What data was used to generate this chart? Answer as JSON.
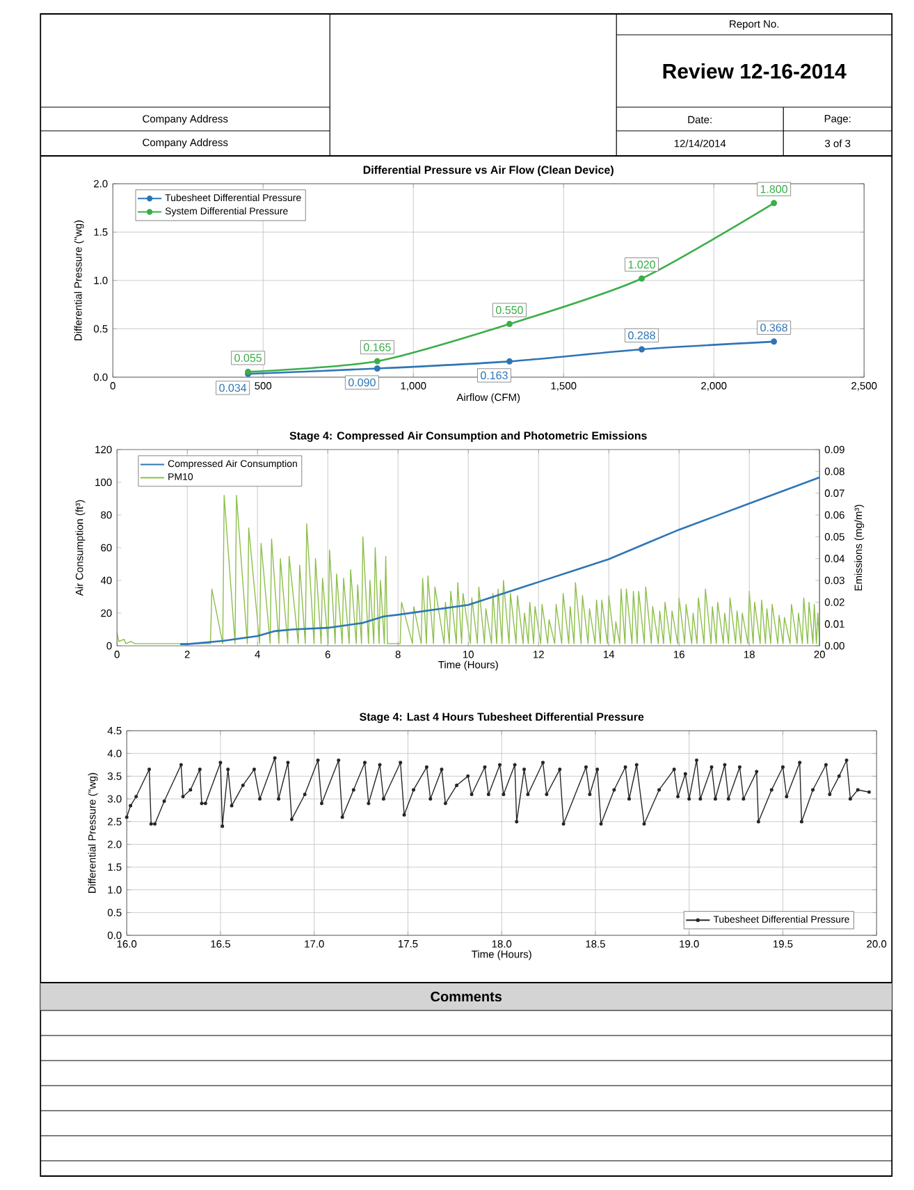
{
  "chart_data": [
    {
      "type": "line",
      "title": "Differential Pressure vs Air Flow (Clean Device)",
      "xlabel": "Airflow (CFM)",
      "ylabel": "Differential Pressure (\"wg)",
      "x": [
        450,
        880,
        1320,
        1760,
        2200
      ],
      "series": [
        {
          "name": "Tubesheet Differential Pressure",
          "color": "#2e75b6",
          "values": [
            0.034,
            0.09,
            0.163,
            0.288,
            0.368
          ],
          "value_labels": [
            "0.034",
            "0.090",
            "0.163",
            "0.288",
            "0.368"
          ]
        },
        {
          "name": "System Differential Pressure",
          "color": "#3cae49",
          "values": [
            0.055,
            0.165,
            0.55,
            1.02,
            1.8
          ],
          "value_labels": [
            "0.055",
            "0.165",
            "0.550",
            "1.020",
            "1.800"
          ]
        }
      ],
      "xlim": [
        0,
        2500
      ],
      "xticks": [
        0,
        500,
        {
          "value": 1000,
          "label": "1,000"
        },
        {
          "value": 1500,
          "label": "1,500"
        },
        {
          "value": 2000,
          "label": "2,000"
        },
        {
          "value": 2500,
          "label": "2,500"
        }
      ],
      "ylim": [
        0,
        2
      ],
      "yticks": [
        {
          "value": 0,
          "label": "0.0"
        },
        {
          "value": 0.5,
          "label": "0.5"
        },
        {
          "value": 1,
          "label": "1.0"
        },
        {
          "value": 1.5,
          "label": "1.5"
        },
        {
          "value": 2,
          "label": "2.0"
        }
      ],
      "grid": true,
      "legend": "top left",
      "marker": "circle",
      "annotations": [
        "Report No.",
        "Review 12-16-2014",
        "Company Address",
        "Company Address",
        "Date:",
        "12/14/2014",
        "Page:",
        "3 of 3"
      ]
    },
    {
      "type": "line",
      "title": "Stage 4: Compressed Air Consumption and Photometric Emissions",
      "xlabel": "Time (Hours)",
      "ylabel": "Air Consumption (ft³)",
      "y2label": "Emissions (mg/m³)",
      "series": [
        {
          "name": "Compressed Air Consumption",
          "color": "#2e75b6",
          "x": [
            1.8,
            2,
            3,
            4,
            4.5,
            5,
            6,
            7,
            7.6,
            8,
            9,
            10,
            11,
            12,
            13,
            14,
            15,
            16,
            17,
            18,
            19,
            20
          ],
          "values": [
            1,
            1,
            3,
            6,
            9,
            10,
            11,
            14,
            18,
            19,
            22,
            25,
            32,
            39,
            46,
            53,
            62,
            71,
            79,
            87,
            95,
            103
          ]
        },
        {
          "name": "PM10",
          "color": "#8dbf4a",
          "axis": "y2",
          "x": [
            0,
            0.05,
            0.2,
            0.25,
            0.4,
            0.5,
            2.66,
            2.7,
            3.01,
            3.05,
            3.36,
            3.4,
            3.71,
            3.75,
            4.06,
            4.1,
            4.36,
            4.4,
            4.61,
            4.65,
            4.86,
            4.9,
            5.16,
            5.2,
            5.36,
            5.4,
            5.61,
            5.65,
            5.81,
            5.85,
            6.01,
            6.05,
            6.21,
            6.25,
            6.41,
            6.45,
            6.61,
            6.65,
            6.81,
            6.85,
            6.96,
            7.0,
            7.16,
            7.2,
            7.31,
            7.35,
            7.46,
            7.5,
            7.61,
            7.65,
            7.7,
            8.06,
            8.1,
            8.41,
            8.45,
            8.66,
            8.7,
            8.81,
            8.85,
            9.01,
            9.05,
            9.31,
            9.35,
            9.46,
            9.5,
            9.66,
            9.7,
            9.81,
            9.85,
            10.06,
            10.1,
            10.26,
            10.3,
            10.46,
            10.5,
            10.66,
            10.7,
            10.81,
            10.85,
            10.96,
            11.0,
            11.16,
            11.2,
            11.36,
            11.4,
            11.56,
            11.6,
            11.71,
            11.75,
            11.86,
            11.9,
            12.06,
            12.1,
            12.26,
            12.3,
            12.46,
            12.5,
            12.66,
            12.7,
            12.86,
            12.9,
            13.01,
            13.05,
            13.21,
            13.25,
            13.41,
            13.45,
            13.61,
            13.65,
            13.76,
            13.8,
            13.96,
            14.0,
            14.16,
            14.2,
            14.31,
            14.35,
            14.46,
            14.5,
            14.66,
            14.7,
            14.81,
            14.85,
            15.01,
            15.05,
            15.21,
            15.25,
            15.41,
            15.45,
            15.56,
            15.6,
            15.76,
            15.8,
            15.96,
            16.0,
            16.16,
            16.2,
            16.36,
            16.4,
            16.51,
            16.55,
            16.71,
            16.75,
            16.91,
            16.95,
            17.06,
            17.1,
            17.26,
            17.3,
            17.41,
            17.45,
            17.61,
            17.65,
            17.76,
            17.8,
            17.96,
            18.0,
            18.11,
            18.15,
            18.31,
            18.35,
            18.46,
            18.5,
            18.61,
            18.65,
            18.81,
            18.85,
            18.96,
            19.0,
            19.16,
            19.2,
            19.36,
            19.4,
            19.51,
            19.55,
            19.66,
            19.7,
            19.81,
            19.85,
            19.91,
            19.95,
            20.0
          ],
          "values": [
            0.006,
            0.002,
            0.003,
            0.001,
            0.002,
            0.001,
            0.001,
            0.026,
            0.001,
            0.069,
            0.001,
            0.069,
            0.001,
            0.054,
            0.001,
            0.047,
            0.001,
            0.049,
            0.001,
            0.04,
            0.001,
            0.041,
            0.001,
            0.037,
            0.001,
            0.056,
            0.001,
            0.04,
            0.001,
            0.031,
            0.001,
            0.044,
            0.001,
            0.033,
            0.001,
            0.031,
            0.001,
            0.035,
            0.001,
            0.028,
            0.001,
            0.05,
            0.001,
            0.03,
            0.001,
            0.045,
            0.001,
            0.03,
            0.001,
            0.041,
            0.001,
            0.001,
            0.02,
            0.001,
            0.018,
            0.001,
            0.031,
            0.001,
            0.032,
            0.001,
            0.027,
            0.001,
            0.02,
            0.001,
            0.025,
            0.001,
            0.029,
            0.001,
            0.024,
            0.001,
            0.022,
            0.001,
            0.027,
            0.001,
            0.017,
            0.001,
            0.024,
            0.001,
            0.026,
            0.001,
            0.03,
            0.001,
            0.024,
            0.001,
            0.023,
            0.001,
            0.015,
            0.001,
            0.02,
            0.001,
            0.018,
            0.001,
            0.019,
            0.001,
            0.012,
            0.001,
            0.019,
            0.001,
            0.024,
            0.001,
            0.018,
            0.001,
            0.029,
            0.001,
            0.023,
            0.001,
            0.017,
            0.001,
            0.021,
            0.001,
            0.021,
            0.001,
            0.023,
            0.001,
            0.011,
            0.001,
            0.026,
            0.001,
            0.026,
            0.001,
            0.025,
            0.001,
            0.025,
            0.001,
            0.027,
            0.001,
            0.018,
            0.001,
            0.016,
            0.001,
            0.02,
            0.001,
            0.016,
            0.001,
            0.022,
            0.001,
            0.019,
            0.001,
            0.015,
            0.001,
            0.022,
            0.001,
            0.026,
            0.001,
            0.018,
            0.001,
            0.02,
            0.001,
            0.015,
            0.001,
            0.022,
            0.001,
            0.016,
            0.001,
            0.015,
            0.001,
            0.025,
            0.001,
            0.02,
            0.001,
            0.021,
            0.001,
            0.017,
            0.001,
            0.019,
            0.001,
            0.014,
            0.001,
            0.013,
            0.001,
            0.019,
            0.001,
            0.015,
            0.001,
            0.022,
            0.001,
            0.02,
            0.001,
            0.019,
            0.001,
            0.015,
            0.001
          ]
        }
      ],
      "xlim": [
        0,
        20
      ],
      "xticks": [
        0,
        2,
        4,
        6,
        8,
        10,
        12,
        14,
        16,
        18,
        20
      ],
      "ylim": [
        0,
        120
      ],
      "yticks": [
        0,
        20,
        40,
        60,
        80,
        100,
        120
      ],
      "y2lim": [
        0,
        0.09
      ],
      "y2ticks": [
        {
          "value": 0,
          "label": "0.00"
        },
        {
          "value": 0.01,
          "label": "0.01"
        },
        {
          "value": 0.02,
          "label": "0.02"
        },
        {
          "value": 0.03,
          "label": "0.03"
        },
        {
          "value": 0.04,
          "label": "0.04"
        },
        {
          "value": 0.05,
          "label": "0.05"
        },
        {
          "value": 0.06,
          "label": "0.06"
        },
        {
          "value": 0.07,
          "label": "0.07"
        },
        {
          "value": 0.08,
          "label": "0.08"
        },
        {
          "value": 0.09,
          "label": "0.09"
        }
      ],
      "grid": "x",
      "legend": "top left"
    },
    {
      "type": "line",
      "title": "Stage 4: Last 4 Hours Tubesheet Differential Pressure",
      "xlabel": "Time (Hours)",
      "ylabel": "Differential Pressure (\"wg)",
      "series": [
        {
          "name": "Tubesheet Differential Pressure",
          "color": "#262626",
          "x": [
            16.0,
            16.02,
            16.05,
            16.12,
            16.13,
            16.15,
            16.2,
            16.29,
            16.3,
            16.34,
            16.39,
            16.4,
            16.42,
            16.5,
            16.51,
            16.54,
            16.56,
            16.62,
            16.68,
            16.71,
            16.79,
            16.81,
            16.86,
            16.88,
            16.95,
            17.02,
            17.04,
            17.13,
            17.15,
            17.21,
            17.27,
            17.29,
            17.35,
            17.37,
            17.46,
            17.48,
            17.53,
            17.6,
            17.62,
            17.68,
            17.7,
            17.76,
            17.82,
            17.84,
            17.91,
            17.93,
            17.99,
            18.01,
            18.07,
            18.08,
            18.12,
            18.14,
            18.22,
            18.24,
            18.31,
            18.33,
            18.45,
            18.47,
            18.51,
            18.53,
            18.6,
            18.66,
            18.68,
            18.72,
            18.76,
            18.84,
            18.92,
            18.94,
            18.98,
            19.0,
            19.04,
            19.06,
            19.12,
            19.14,
            19.19,
            19.21,
            19.27,
            19.29,
            19.36,
            19.37,
            19.44,
            19.5,
            19.52,
            19.59,
            19.6,
            19.66,
            19.73,
            19.75,
            19.8,
            19.84,
            19.86,
            19.9,
            19.96
          ],
          "values": [
            2.6,
            2.85,
            3.05,
            3.65,
            2.45,
            2.45,
            2.95,
            3.75,
            3.05,
            3.2,
            3.65,
            2.9,
            2.9,
            3.8,
            2.4,
            3.65,
            2.85,
            3.3,
            3.65,
            3.0,
            3.9,
            3.0,
            3.8,
            2.55,
            3.1,
            3.85,
            2.9,
            3.85,
            2.6,
            3.2,
            3.8,
            2.9,
            3.75,
            3.0,
            3.8,
            2.65,
            3.2,
            3.7,
            3.0,
            3.65,
            2.9,
            3.3,
            3.5,
            3.1,
            3.7,
            3.1,
            3.75,
            3.1,
            3.75,
            2.5,
            3.65,
            3.1,
            3.8,
            3.1,
            3.65,
            2.45,
            3.7,
            3.1,
            3.65,
            2.45,
            3.2,
            3.7,
            3.0,
            3.75,
            2.45,
            3.2,
            3.65,
            3.05,
            3.55,
            3.0,
            3.85,
            3.0,
            3.7,
            3.0,
            3.75,
            3.0,
            3.7,
            3.0,
            3.6,
            2.5,
            3.2,
            3.7,
            3.05,
            3.8,
            2.5,
            3.2,
            3.75,
            3.1,
            3.5,
            3.85,
            3.0,
            3.2,
            3.15
          ]
        }
      ],
      "xlim": [
        16,
        20
      ],
      "xticks": [
        {
          "value": 16,
          "label": "16.0"
        },
        {
          "value": 16.5,
          "label": "16.5"
        },
        {
          "value": 17,
          "label": "17.0"
        },
        {
          "value": 17.5,
          "label": "17.5"
        },
        {
          "value": 18,
          "label": "18.0"
        },
        {
          "value": 18.5,
          "label": "18.5"
        },
        {
          "value": 19,
          "label": "19.0"
        },
        {
          "value": 19.5,
          "label": "19.5"
        },
        {
          "value": 20,
          "label": "20.0"
        }
      ],
      "ylim": [
        0,
        4.5
      ],
      "yticks": [
        {
          "value": 0,
          "label": "0.0"
        },
        {
          "value": 0.5,
          "label": "0.5"
        },
        {
          "value": 1,
          "label": "1.0"
        },
        {
          "value": 1.5,
          "label": "1.5"
        },
        {
          "value": 2,
          "label": "2.0"
        },
        {
          "value": 2.5,
          "label": "2.5"
        },
        {
          "value": 3,
          "label": "3.0"
        },
        {
          "value": 3.5,
          "label": "3.5"
        },
        {
          "value": 4,
          "label": "4.0"
        },
        {
          "value": 4.5,
          "label": "4.5"
        }
      ],
      "grid": true,
      "legend": "bottom right",
      "marker": "circle",
      "annotations": [
        "Comments"
      ]
    }
  ]
}
